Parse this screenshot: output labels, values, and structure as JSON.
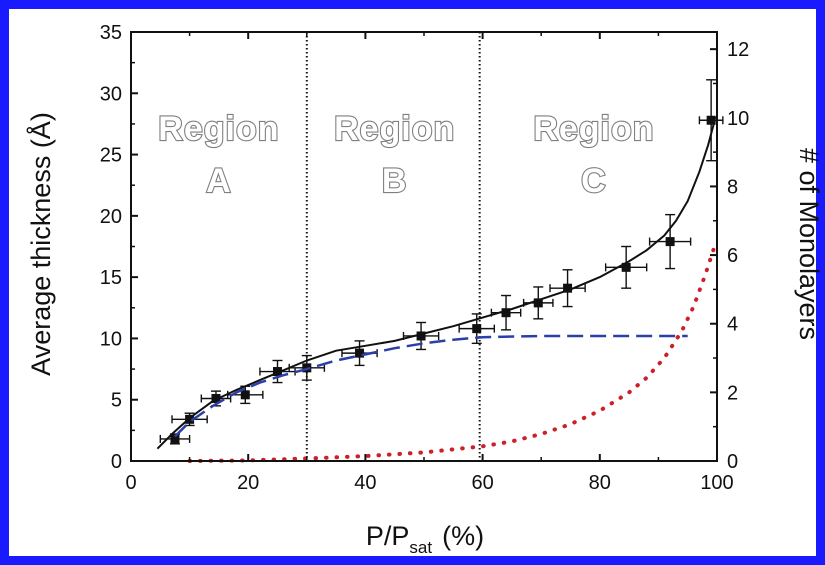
{
  "colors": {
    "frame": "#1a1aff",
    "fit_curve": "#111111",
    "monolayer_model": "#2b3fa8",
    "capillary_model": "#cc1f2a",
    "data_points": "#111111"
  },
  "chart_data": {
    "type": "scatter",
    "xlabel_main": "P/P",
    "xlabel_sub": "sat",
    "xlabel_unit": "(%)",
    "ylabel_left": "Average thickness (Å)",
    "ylabel_right": "# of Monolayers",
    "xlim": [
      0,
      100
    ],
    "ylim_left": [
      0,
      35
    ],
    "ylim_right": [
      0,
      12.5
    ],
    "x_ticks": [
      "0",
      "20",
      "40",
      "60",
      "80",
      "100"
    ],
    "y_left_ticks": [
      "0",
      "5",
      "10",
      "15",
      "20",
      "25",
      "30",
      "35"
    ],
    "y_right_ticks": [
      "0",
      "2",
      "4",
      "6",
      "8",
      "10",
      "12"
    ],
    "region_boundaries": [
      30,
      59.5
    ],
    "regions": [
      {
        "line1": "Region",
        "line2": "A",
        "x_center": 15
      },
      {
        "line1": "Region",
        "line2": "B",
        "x_center": 45
      },
      {
        "line1": "Region",
        "line2": "C",
        "x_center": 79
      }
    ],
    "series": [
      {
        "kind": "points",
        "x": [
          7.5,
          10,
          14.5,
          19.5,
          25,
          30,
          39,
          49.5,
          59,
          64,
          69.5,
          74.5,
          84.5,
          92,
          99
        ],
        "y": [
          1.8,
          3.4,
          5.1,
          5.4,
          7.3,
          7.6,
          8.8,
          10.2,
          10.8,
          12.1,
          12.9,
          14.1,
          15.8,
          17.9,
          27.8
        ],
        "xerr": [
          2.5,
          3.0,
          2.5,
          3.0,
          3.0,
          3.0,
          3.0,
          3.0,
          3.0,
          2.5,
          2.5,
          3.0,
          3.5,
          3.5,
          2.0
        ],
        "yerr": [
          0.4,
          0.5,
          0.6,
          0.7,
          0.9,
          1.0,
          1.0,
          1.1,
          1.2,
          1.4,
          1.3,
          1.5,
          1.7,
          2.2,
          3.3
        ]
      },
      {
        "kind": "solid",
        "x": [
          4.5,
          7,
          10,
          14,
          18,
          22,
          26,
          30,
          35,
          40,
          45,
          50,
          55,
          60,
          65,
          70,
          75,
          80,
          85,
          88,
          91,
          93,
          95,
          97,
          98.5,
          99.5
        ],
        "y": [
          1.0,
          2.2,
          3.5,
          4.9,
          5.8,
          6.6,
          7.4,
          8.2,
          9.0,
          9.4,
          9.8,
          10.4,
          11.0,
          11.7,
          12.4,
          13.2,
          14.0,
          15.0,
          16.3,
          17.2,
          18.4,
          19.6,
          21.2,
          23.6,
          25.8,
          27.6
        ]
      },
      {
        "kind": "dashed",
        "x": [
          7.5,
          10,
          14,
          18,
          22,
          26,
          30,
          35,
          40,
          45,
          50,
          55,
          60,
          70,
          80,
          90,
          95
        ],
        "y": [
          2.0,
          3.2,
          4.5,
          5.6,
          6.4,
          7.0,
          7.5,
          8.2,
          8.7,
          9.2,
          9.6,
          9.9,
          10.1,
          10.2,
          10.2,
          10.2,
          10.2
        ]
      },
      {
        "kind": "dotted",
        "x": [
          10,
          20,
          30,
          40,
          50,
          60,
          65,
          70,
          75,
          80,
          85,
          88,
          91,
          94,
          96,
          98,
          99.5
        ],
        "y": [
          0.0,
          0.05,
          0.2,
          0.4,
          0.7,
          1.2,
          1.6,
          2.2,
          3.0,
          4.1,
          5.6,
          6.8,
          8.4,
          10.6,
          12.6,
          15.2,
          17.4
        ]
      }
    ]
  }
}
